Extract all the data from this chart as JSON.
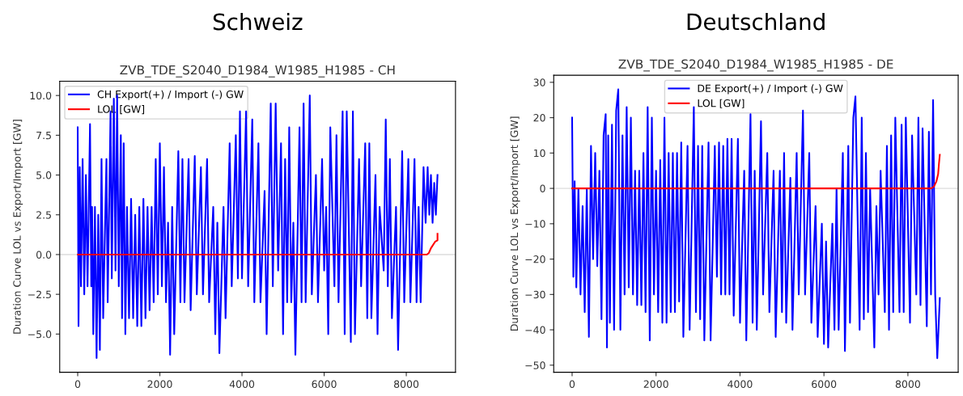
{
  "chart_data": [
    {
      "type": "line",
      "title": "Schweiz",
      "subtitle": "ZVB_TDE_S2040_D1984_W1985_H1985 - CH",
      "ylabel": "Duration Curve LOL vs Export/Import [GW]",
      "xlim": [
        -438,
        9198
      ],
      "ylim": [
        -7.4,
        10.9
      ],
      "xticks": [
        0,
        2000,
        4000,
        6000,
        8000
      ],
      "yticks": [
        {
          "value": -5,
          "label": "−5.0"
        },
        {
          "value": -2.5,
          "label": "−2.5"
        },
        {
          "value": 0,
          "label": "0.0"
        },
        {
          "value": 2.5,
          "label": "2.5"
        },
        {
          "value": 5,
          "label": "5.0"
        },
        {
          "value": 7.5,
          "label": "7.5"
        },
        {
          "value": 10,
          "label": "10.0"
        }
      ],
      "legend": "top left",
      "grid": false,
      "line_style": "solid",
      "ref_lines": [
        {
          "axis": "y",
          "value": 0,
          "color": "#dddddd"
        }
      ],
      "series": [
        {
          "name": "CH Export(+) / Import (-) GW",
          "color": "#0000ff",
          "x": [
            0,
            20,
            50,
            80,
            120,
            160,
            200,
            240,
            300,
            330,
            350,
            380,
            420,
            460,
            500,
            540,
            580,
            620,
            700,
            730,
            800,
            830,
            880,
            920,
            960,
            1000,
            1050,
            1080,
            1120,
            1160,
            1200,
            1250,
            1300,
            1350,
            1400,
            1450,
            1500,
            1550,
            1600,
            1650,
            1700,
            1750,
            1800,
            1850,
            1900,
            1950,
            2000,
            2050,
            2100,
            2150,
            2200,
            2250,
            2300,
            2350,
            2450,
            2500,
            2550,
            2600,
            2700,
            2750,
            2850,
            2900,
            3000,
            3050,
            3150,
            3200,
            3300,
            3350,
            3400,
            3450,
            3550,
            3600,
            3700,
            3750,
            3850,
            3900,
            3950,
            4000,
            4100,
            4150,
            4250,
            4300,
            4400,
            4450,
            4550,
            4600,
            4700,
            4750,
            4820,
            4880,
            4950,
            5000,
            5050,
            5100,
            5150,
            5200,
            5250,
            5300,
            5400,
            5450,
            5500,
            5550,
            5650,
            5700,
            5800,
            5850,
            5950,
            6000,
            6050,
            6100,
            6150,
            6250,
            6300,
            6350,
            6450,
            6500,
            6550,
            6650,
            6700,
            6750,
            6850,
            6900,
            7000,
            7050,
            7100,
            7150,
            7250,
            7300,
            7350,
            7450,
            7500,
            7550,
            7600,
            7650,
            7750,
            7800,
            7900,
            7950,
            8050,
            8100,
            8200,
            8250,
            8300,
            8350,
            8420,
            8470,
            8520,
            8560,
            8600,
            8640,
            8680,
            8720,
            8760
          ],
          "values": [
            8,
            -4.5,
            5.5,
            -2,
            6,
            -2.5,
            5,
            -2,
            8.2,
            -2,
            3,
            -5,
            3,
            -6.5,
            2.5,
            -6,
            6,
            -4,
            6,
            -3,
            9,
            -1.5,
            9.8,
            -1,
            10,
            -2,
            7.5,
            -4,
            7,
            -5,
            3,
            -4,
            3.5,
            -4,
            2.5,
            -4.5,
            3,
            -4.5,
            3.5,
            -4,
            3,
            -3.5,
            3,
            -3,
            6,
            -2.5,
            7,
            -2,
            5.5,
            -3,
            2,
            -6.3,
            3,
            -5,
            6.5,
            -3,
            6,
            -3,
            6,
            -3.5,
            6.2,
            -2.5,
            5.5,
            -2.5,
            6,
            -3,
            3,
            -5,
            2,
            -6.2,
            3,
            -4,
            7,
            -2,
            7.5,
            -1.5,
            9,
            -1.5,
            9,
            -2,
            8.5,
            -3,
            7,
            -3,
            4,
            -5,
            9.5,
            -2,
            9.5,
            -1,
            7,
            -5,
            6,
            -3,
            8,
            -3,
            2,
            -6.3,
            8,
            -3,
            9.5,
            -3,
            10,
            -2.5,
            5,
            -3,
            6,
            -1,
            3,
            -5,
            8,
            -2,
            7.5,
            -3,
            9,
            -5,
            9,
            -5.5,
            9,
            -5,
            6,
            -2,
            7,
            -4,
            7,
            -4,
            5,
            -5,
            3,
            -1,
            8.5,
            -2,
            6,
            -4,
            3,
            -6,
            6.5,
            -3,
            6,
            -3,
            6,
            -3,
            3,
            -3,
            5.5,
            2,
            5.5,
            2.5,
            5,
            2,
            4.5,
            2.5,
            5
          ]
        },
        {
          "name": "LOL [GW]",
          "color": "#ff0000",
          "x": [
            0,
            8500,
            8550,
            8600,
            8700,
            8760,
            8760
          ],
          "values": [
            0,
            0,
            0.1,
            0.4,
            0.8,
            0.9,
            1.3
          ]
        }
      ]
    },
    {
      "type": "line",
      "title": "Deutschland",
      "subtitle": "ZVB_TDE_S2040_D1984_W1985_H1985 - DE",
      "ylabel": "Duration Curve LOL vs Export/Import [GW]",
      "xlim": [
        -438,
        9198
      ],
      "ylim": [
        -52,
        32
      ],
      "xticks": [
        0,
        2000,
        4000,
        6000,
        8000
      ],
      "yticks": [
        {
          "value": -50,
          "label": "−50"
        },
        {
          "value": -40,
          "label": "−40"
        },
        {
          "value": -30,
          "label": "−30"
        },
        {
          "value": -20,
          "label": "−20"
        },
        {
          "value": -10,
          "label": "−10"
        },
        0,
        10,
        20,
        30
      ],
      "legend": "top",
      "grid": false,
      "line_style": "solid",
      "ref_lines": [
        {
          "axis": "y",
          "value": 0,
          "color": "#dddddd"
        }
      ],
      "series": [
        {
          "name": "DE Export(+) / Import (-) GW",
          "color": "#0000ff",
          "x": [
            0,
            30,
            60,
            100,
            150,
            200,
            250,
            300,
            350,
            400,
            450,
            500,
            550,
            600,
            650,
            700,
            750,
            800,
            830,
            860,
            900,
            950,
            1000,
            1050,
            1100,
            1150,
            1200,
            1250,
            1300,
            1350,
            1400,
            1450,
            1500,
            1550,
            1600,
            1650,
            1700,
            1750,
            1800,
            1850,
            1900,
            1950,
            2000,
            2050,
            2100,
            2150,
            2200,
            2250,
            2300,
            2350,
            2400,
            2450,
            2500,
            2550,
            2600,
            2650,
            2750,
            2800,
            2900,
            2950,
            3000,
            3050,
            3100,
            3150,
            3250,
            3300,
            3400,
            3450,
            3500,
            3550,
            3600,
            3650,
            3700,
            3750,
            3800,
            3850,
            3950,
            4000,
            4100,
            4150,
            4250,
            4300,
            4350,
            4400,
            4500,
            4550,
            4650,
            4700,
            4800,
            4850,
            4950,
            5000,
            5050,
            5100,
            5200,
            5250,
            5350,
            5400,
            5500,
            5550,
            5650,
            5700,
            5800,
            5850,
            5950,
            6000,
            6050,
            6100,
            6200,
            6250,
            6300,
            6350,
            6450,
            6500,
            6580,
            6620,
            6700,
            6750,
            6850,
            6900,
            6950,
            7000,
            7050,
            7100,
            7200,
            7250,
            7300,
            7350,
            7450,
            7500,
            7550,
            7600,
            7650,
            7700,
            7800,
            7850,
            7900,
            7950,
            8050,
            8100,
            8200,
            8250,
            8300,
            8350,
            8450,
            8500,
            8550,
            8600,
            8650,
            8700,
            8760
          ],
          "values": [
            20,
            -25,
            2,
            -28,
            0,
            -30,
            -5,
            -35,
            0,
            -42,
            12,
            -20,
            10,
            -22,
            5,
            -37,
            15,
            21,
            -45,
            15,
            -38,
            18,
            -40,
            22,
            28,
            -40,
            15,
            -30,
            23,
            -28,
            20,
            -30,
            5,
            -33,
            5,
            -33,
            10,
            -35,
            23,
            -43,
            20,
            -30,
            5,
            -35,
            8,
            -38,
            20,
            -38,
            10,
            -35,
            10,
            -35,
            10,
            -32,
            13,
            -42,
            12,
            -40,
            23,
            -35,
            12,
            -37,
            12,
            -43,
            13,
            -43,
            12,
            -25,
            13,
            -30,
            12,
            -30,
            14,
            -30,
            14,
            -36,
            14,
            -38,
            5,
            -43,
            21,
            -38,
            5,
            -40,
            19,
            -30,
            10,
            -35,
            5,
            -42,
            5,
            -35,
            10,
            -38,
            3,
            -40,
            10,
            -30,
            22,
            -30,
            10,
            -38,
            -5,
            -42,
            -10,
            -44,
            -15,
            -45,
            -10,
            -40,
            0,
            -40,
            10,
            -46,
            12,
            -38,
            20,
            26,
            -40,
            20,
            -37,
            10,
            -35,
            0,
            -45,
            -5,
            -30,
            5,
            -35,
            12,
            -40,
            15,
            -35,
            20,
            -35,
            18,
            -35,
            20,
            -38,
            15,
            -30,
            20,
            -33,
            17,
            -39,
            16,
            -30,
            25,
            -30,
            -48,
            -31
          ]
        },
        {
          "name": "LOL [GW]",
          "color": "#ff0000",
          "x": [
            0,
            8550,
            8620,
            8680,
            8720,
            8740,
            8760
          ],
          "values": [
            0,
            0,
            0.5,
            2,
            4,
            7,
            9.5
          ]
        }
      ]
    }
  ]
}
